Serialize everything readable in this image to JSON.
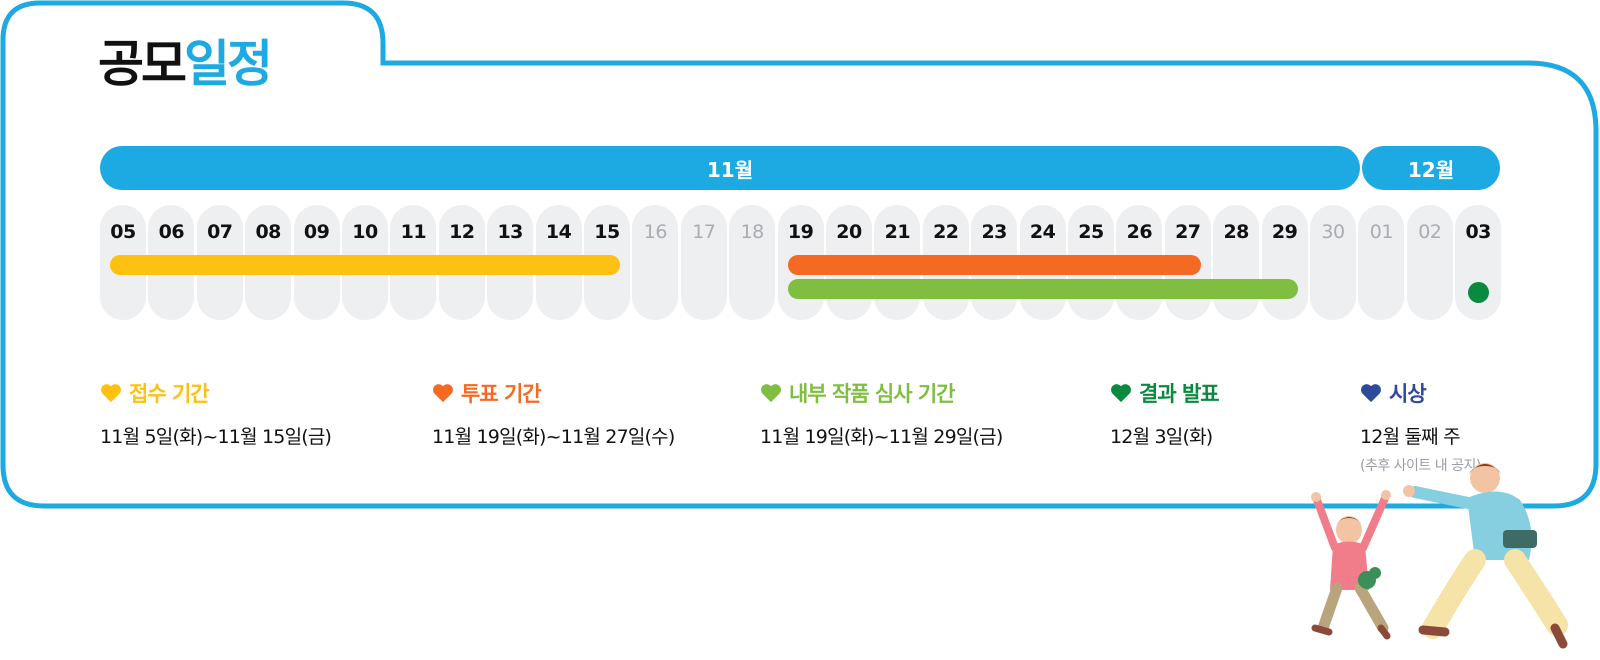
{
  "title": {
    "part1": "공모",
    "part2": "일정"
  },
  "months": [
    {
      "label": "11월"
    },
    {
      "label": "12월"
    }
  ],
  "days": [
    "05",
    "06",
    "07",
    "08",
    "09",
    "10",
    "11",
    "12",
    "13",
    "14",
    "15",
    "16",
    "17",
    "18",
    "19",
    "20",
    "21",
    "22",
    "23",
    "24",
    "25",
    "26",
    "27",
    "28",
    "29",
    "30",
    "01",
    "02",
    "03"
  ],
  "muted_days": [
    "16",
    "17",
    "18",
    "30",
    "01",
    "02"
  ],
  "legend": [
    {
      "title": "접수 기간",
      "date": "11월 5일(화)~11월 15일(금)",
      "color": "#fcc111",
      "start_day": "05",
      "end_day": "15"
    },
    {
      "title": "투표 기간",
      "date": "11월 19일(화)~11월 27일(수)",
      "color": "#f46a23",
      "start_day": "19",
      "end_day": "27"
    },
    {
      "title": "내부 작품 심사 기간",
      "date": "11월 19일(화)~11월 29일(금)",
      "color": "#7fbe41",
      "start_day": "19",
      "end_day": "29"
    },
    {
      "title": "결과 발표",
      "date": "12월 3일(화)",
      "color": "#0a8a3e",
      "start_day": "03",
      "end_day": "03"
    },
    {
      "title": "시상",
      "date": "12월 둘째 주",
      "note": "(추후 사이트 내 공지)",
      "color": "#2d4b9a"
    }
  ],
  "colors": {
    "frame": "#1da9e1",
    "day_bg": "#eeeff1"
  }
}
